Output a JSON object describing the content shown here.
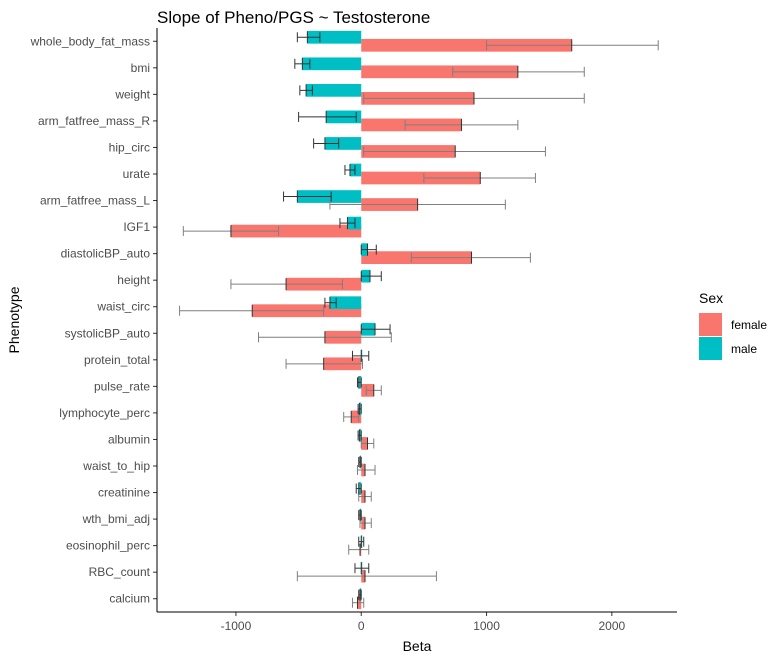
{
  "chart_data": {
    "type": "bar",
    "orientation": "horizontal",
    "title": "Slope of Pheno/PGS ~ Testosterone",
    "xlabel": "Beta",
    "ylabel": "Phenotype",
    "xlim": [
      -1630,
      2520
    ],
    "x_ticks": [
      -1000,
      0,
      1000,
      2000
    ],
    "x_tick_labels": [
      "-1000",
      "0",
      "1000",
      "2000"
    ],
    "grid": false,
    "legend": {
      "title": "Sex",
      "position": "right"
    },
    "categories": [
      "whole_body_fat_mass",
      "bmi",
      "weight",
      "arm_fatfree_mass_R",
      "hip_circ",
      "urate",
      "arm_fatfree_mass_L",
      "IGF1",
      "diastolicBP_auto",
      "height",
      "waist_circ",
      "systolicBP_auto",
      "protein_total",
      "pulse_rate",
      "lymphocyte_perc",
      "albumin",
      "waist_to_hip",
      "creatinine",
      "wth_bmi_adj",
      "eosinophil_perc",
      "RBC_count",
      "calcium"
    ],
    "series": [
      {
        "name": "female",
        "color": "#F8766D",
        "values": [
          1680,
          1250,
          900,
          800,
          750,
          950,
          450,
          -1040,
          880,
          -600,
          -870,
          -290,
          -300,
          100,
          -80,
          50,
          30,
          30,
          30,
          -10,
          30,
          -30
        ],
        "error_low": [
          1000,
          730,
          20,
          350,
          20,
          500,
          -250,
          -1420,
          400,
          -1040,
          -1450,
          -820,
          -600,
          40,
          -140,
          0,
          -30,
          -20,
          -10,
          -100,
          -510,
          -70
        ],
        "error_high": [
          2370,
          1780,
          1780,
          1250,
          1470,
          1390,
          1150,
          -660,
          1350,
          -150,
          -300,
          240,
          10,
          160,
          -20,
          100,
          110,
          80,
          80,
          60,
          600,
          20
        ]
      },
      {
        "name": "male",
        "color": "#00BFC4",
        "values": [
          -430,
          -470,
          -440,
          -280,
          -290,
          -90,
          -510,
          -110,
          50,
          70,
          -250,
          110,
          0,
          -20,
          -15,
          -15,
          -10,
          -20,
          -10,
          0,
          0,
          -10
        ],
        "error_low": [
          -510,
          -530,
          -490,
          -500,
          -380,
          -130,
          -620,
          -170,
          0,
          0,
          -290,
          0,
          -70,
          -30,
          -25,
          -25,
          -20,
          -40,
          -20,
          -20,
          -50,
          -20
        ],
        "error_high": [
          -330,
          -410,
          -390,
          -40,
          -180,
          -50,
          -240,
          -50,
          120,
          160,
          -200,
          230,
          60,
          0,
          0,
          0,
          0,
          0,
          0,
          20,
          60,
          0
        ]
      }
    ]
  }
}
